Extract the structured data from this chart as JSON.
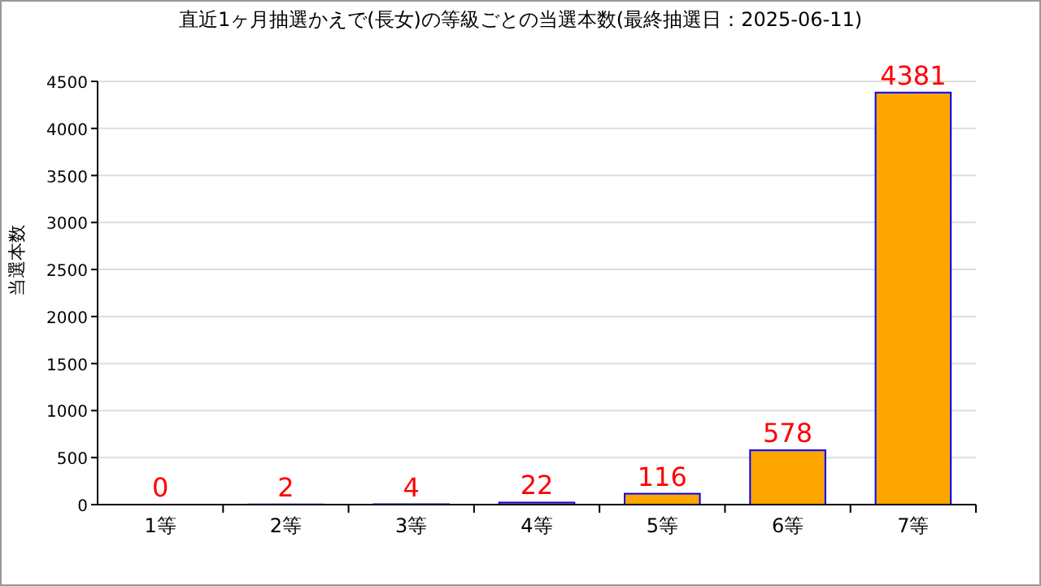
{
  "chart_data": {
    "type": "bar",
    "title": "直近1ヶ月抽選かえで(長女)の等級ごとの当選本数(最終抽選日：2025-06-11)",
    "ylabel": "当選本数",
    "categories": [
      "1等",
      "2等",
      "3等",
      "4等",
      "5等",
      "6等",
      "7等"
    ],
    "values": [
      0,
      2,
      4,
      22,
      116,
      578,
      4381
    ],
    "color": "#ffa500",
    "ylim": [
      0,
      4500
    ],
    "yticks": [
      0,
      500,
      1000,
      1500,
      2000,
      2500,
      3000,
      3500,
      4000,
      4500
    ],
    "grid": "y",
    "data_labels": true
  }
}
